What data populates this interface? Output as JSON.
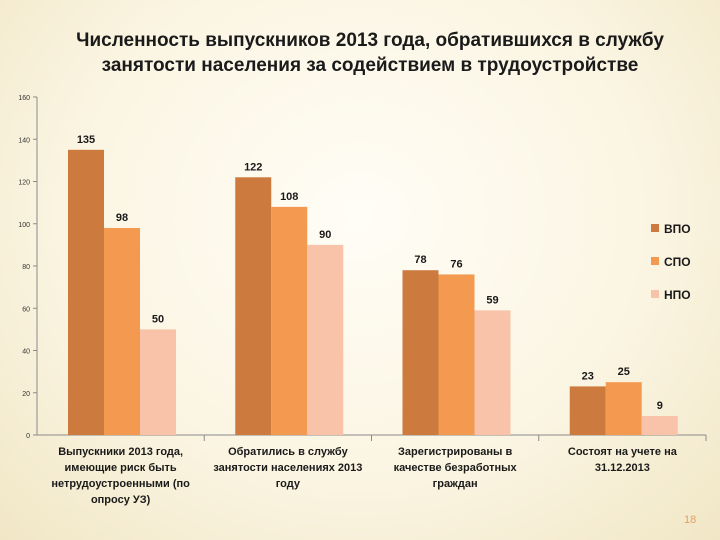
{
  "title_lines": [
    "Численность выпускников 2013 года, обратившихся в службу",
    "занятости населения за содействием в трудоустройстве"
  ],
  "slide_number": "18",
  "colors": {
    "ВПО": "#cc7a3e",
    "СПО": "#f49a50",
    "НПО": "#f8c3a8"
  },
  "chart_data": {
    "type": "bar",
    "title": "Численность выпускников 2013 года, обратившихся в службу занятости населения за содействием в трудоустройстве",
    "categories": [
      [
        "Выпускники 2013 года,",
        "имеющие риск быть",
        "нетрудоустроенными (по",
        "опросу УЗ)"
      ],
      [
        "Обратились в службу",
        "занятости населениях 2013",
        "году"
      ],
      [
        "Зарегистрированы в",
        "качестве безработных",
        "граждан"
      ],
      [
        "Состоят на учете на",
        "31.12.2013"
      ]
    ],
    "series": [
      {
        "name": "ВПО",
        "values": [
          135,
          122,
          78,
          23
        ]
      },
      {
        "name": "СПО",
        "values": [
          98,
          108,
          76,
          25
        ]
      },
      {
        "name": "НПО",
        "values": [
          50,
          90,
          59,
          9
        ]
      }
    ],
    "yticks": [
      "0",
      "20",
      "40",
      "60",
      "80",
      "100",
      "120",
      "140",
      "160"
    ],
    "ylim": [
      0,
      160
    ],
    "xlabel": "",
    "ylabel": "",
    "legend_position": "right"
  }
}
